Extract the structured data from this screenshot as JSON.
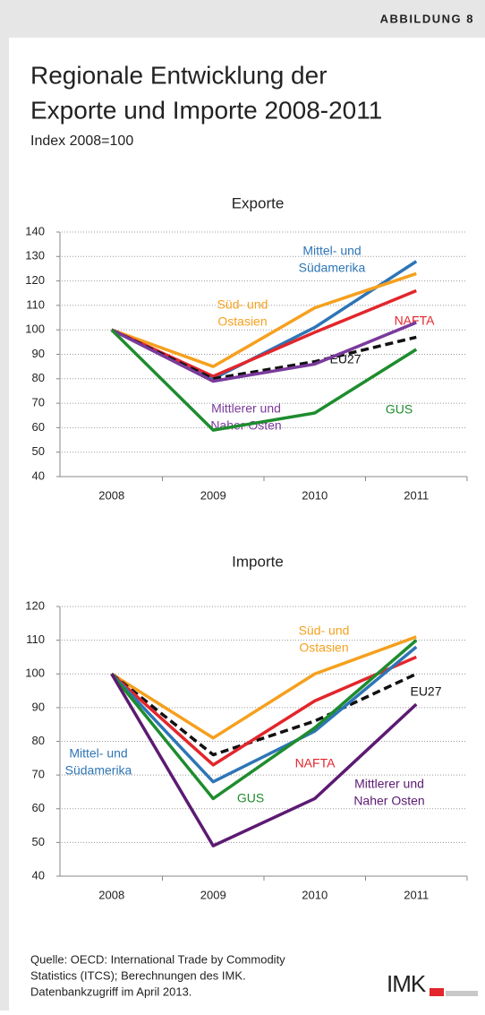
{
  "header": {
    "label": "ABBILDUNG 8"
  },
  "title": [
    "Regionale Entwicklung der",
    "Exporte und Importe 2008-2011"
  ],
  "subtitle": "Index 2008=100",
  "chart_data": [
    {
      "type": "line",
      "title": "Exporte",
      "categories": [
        "2008",
        "2009",
        "2010",
        "2011"
      ],
      "ylim": [
        40,
        140
      ],
      "yticks": [
        40,
        50,
        60,
        70,
        80,
        90,
        100,
        110,
        120,
        130,
        140
      ],
      "grid": true,
      "series": [
        {
          "name": [
            "Mittel- und",
            "Südamerika"
          ],
          "color": "#2e75b6",
          "values": [
            100,
            80,
            101,
            128
          ]
        },
        {
          "name": [
            "Süd- und",
            "Ostasien"
          ],
          "color": "#f5a01e",
          "values": [
            100,
            85,
            109,
            123
          ]
        },
        {
          "name": [
            "NAFTA"
          ],
          "color": "#e2262b",
          "values": [
            100,
            81,
            99,
            116
          ]
        },
        {
          "name": [
            "EU27"
          ],
          "color": "#111111",
          "style": "dashed",
          "values": [
            100,
            80,
            87,
            97
          ]
        },
        {
          "name": [
            "Mittlerer und",
            "Naher Osten"
          ],
          "color": "#7a3a9c",
          "values": [
            100,
            79,
            86,
            103
          ]
        },
        {
          "name": [
            "GUS"
          ],
          "color": "#1e8c2e",
          "values": [
            100,
            59,
            66,
            92
          ]
        }
      ]
    },
    {
      "type": "line",
      "title": "Importe",
      "categories": [
        "2008",
        "2009",
        "2010",
        "2011"
      ],
      "ylim": [
        40,
        120
      ],
      "yticks": [
        40,
        50,
        60,
        70,
        80,
        90,
        100,
        110,
        120
      ],
      "grid": true,
      "series": [
        {
          "name": [
            "Süd- und",
            "Ostasien"
          ],
          "color": "#f5a01e",
          "values": [
            100,
            81,
            100,
            111
          ]
        },
        {
          "name": [
            "EU27"
          ],
          "color": "#111111",
          "style": "dashed",
          "values": [
            100,
            76,
            86,
            100
          ]
        },
        {
          "name": [
            "NAFTA"
          ],
          "color": "#e2262b",
          "values": [
            100,
            73,
            92,
            105
          ]
        },
        {
          "name": [
            "Mittel- und",
            "Südamerika"
          ],
          "color": "#2e75b6",
          "values": [
            100,
            68,
            83,
            108
          ]
        },
        {
          "name": [
            "GUS"
          ],
          "color": "#1e8c2e",
          "values": [
            100,
            63,
            84,
            110
          ]
        },
        {
          "name": [
            "Mittlerer und",
            "Naher Osten"
          ],
          "color": "#5c1a72",
          "values": [
            100,
            49,
            63,
            91
          ]
        }
      ]
    }
  ],
  "source": [
    "Quelle: OECD: International Trade by Commodity",
    "Statistics (ITCS); Berechnungen des IMK.",
    "Datenbankzugriff im April 2013."
  ],
  "logo": "IMK"
}
